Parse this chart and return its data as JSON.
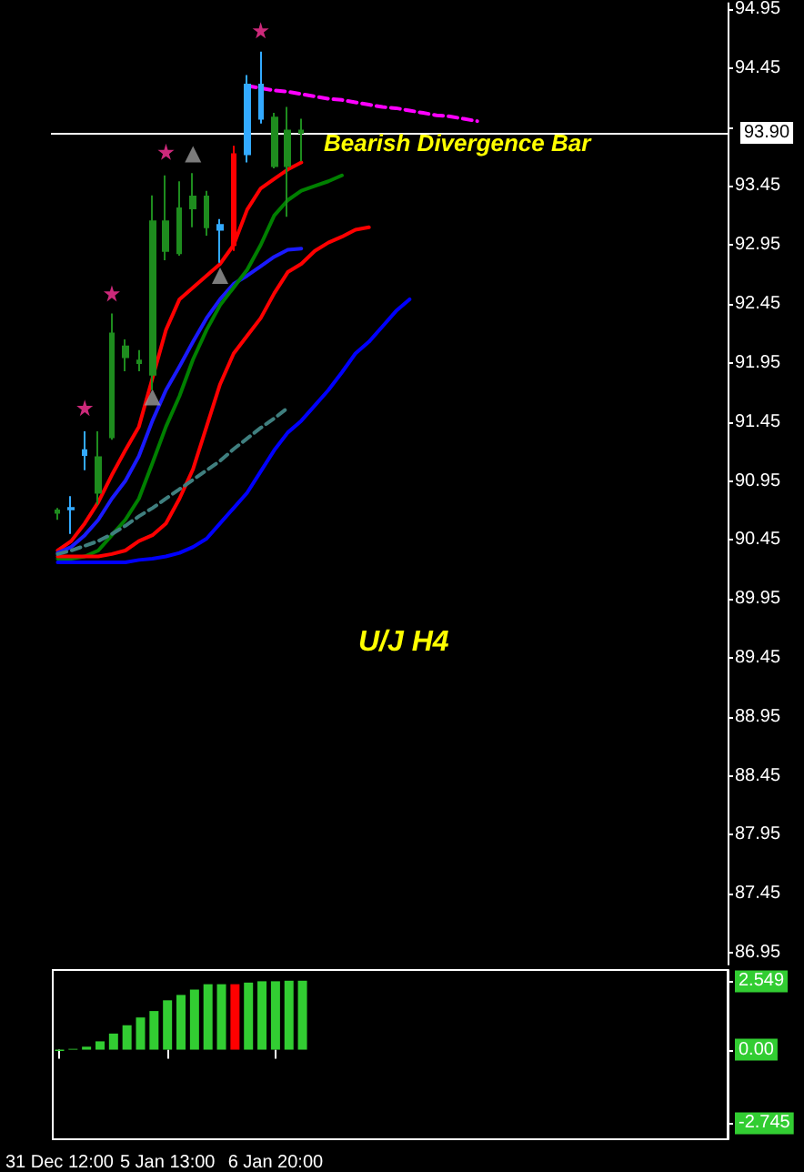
{
  "chart_data": [
    {
      "type": "candlestick",
      "title": "U/J H4",
      "annotations": [
        "Bearish Divergence Bar"
      ],
      "categories": [
        null,
        null,
        null,
        null,
        null,
        null,
        null,
        null,
        null,
        null,
        null,
        null,
        null,
        null,
        null,
        null,
        null,
        null,
        null,
        null,
        null,
        null,
        null,
        null,
        null,
        null,
        null,
        null,
        null,
        null,
        null,
        null,
        null,
        null,
        null,
        null,
        null,
        null,
        null,
        null,
        null,
        null,
        null,
        null,
        null,
        null,
        null,
        null,
        null,
        null
      ],
      "ohlc": [
        [
          90.7,
          90.72,
          90.62,
          90.68
        ],
        [
          90.71,
          90.82,
          90.5,
          90.72
        ],
        [
          91.17,
          91.37,
          91.04,
          91.21
        ],
        [
          91.15,
          91.37,
          90.75,
          90.85
        ],
        [
          92.2,
          92.37,
          91.3,
          91.32
        ],
        [
          92.09,
          92.15,
          91.88,
          92.0
        ],
        [
          91.97,
          92.06,
          91.88,
          91.95
        ],
        [
          93.15,
          93.37,
          91.72,
          91.85
        ],
        [
          93.15,
          93.54,
          92.82,
          92.9
        ],
        [
          93.26,
          93.49,
          92.86,
          92.88
        ],
        [
          93.36,
          93.56,
          93.1,
          93.26
        ],
        [
          93.36,
          93.41,
          93.03,
          93.1
        ],
        [
          93.08,
          93.17,
          92.8,
          93.12
        ],
        [
          92.95,
          93.79,
          92.9,
          93.72
        ],
        [
          93.72,
          94.39,
          93.65,
          94.31
        ],
        [
          94.02,
          94.59,
          93.98,
          94.31
        ],
        [
          94.03,
          94.07,
          93.6,
          93.62
        ],
        [
          93.92,
          94.12,
          93.19,
          93.62
        ],
        [
          93.92,
          94.02,
          93.66,
          93.9
        ],
        null,
        null,
        null,
        null,
        null,
        null,
        null,
        null,
        null,
        null,
        null,
        null,
        null,
        null,
        null,
        null,
        null,
        null,
        null,
        null,
        null,
        null,
        null,
        null,
        null,
        null,
        null,
        null,
        null,
        null,
        null
      ],
      "colors": [
        "#1e8c1e",
        "#33aaff",
        "#33aaff",
        "#1e8c1e",
        "#1e8c1e",
        "#1e8c1e",
        "#1e8c1e",
        "#1e8c1e",
        "#1e8c1e",
        "#1e8c1e",
        "#1e8c1e",
        "#1e8c1e",
        "#33aaff",
        "#ff0000",
        "#33aaff",
        "#33aaff",
        "#1e8c1e",
        "#1e8c1e",
        "#1e8c1e",
        null,
        null,
        null,
        null,
        null,
        null,
        null,
        null,
        null,
        null,
        null,
        null,
        null,
        null,
        null,
        null,
        null,
        null,
        null,
        null,
        null,
        null,
        null,
        null,
        null,
        null,
        null,
        null,
        null,
        null,
        null
      ],
      "series": [
        {
          "type": "line",
          "color": "#ff0000",
          "values": [
            90.36,
            90.44,
            90.59,
            90.77,
            91.0,
            91.21,
            91.41,
            91.82,
            92.23,
            92.49,
            92.59,
            92.69,
            92.79,
            92.95,
            93.25,
            93.43,
            93.51,
            93.59,
            93.65,
            null,
            null,
            null,
            null,
            null,
            null,
            null,
            null,
            null,
            null,
            null,
            null,
            null,
            null,
            null,
            null,
            null,
            null,
            null,
            null,
            null,
            null,
            null,
            null,
            null,
            null,
            null,
            null,
            null,
            null,
            null
          ]
        },
        {
          "type": "line",
          "color": "#1a1aff",
          "values": [
            90.34,
            90.39,
            90.49,
            90.62,
            90.8,
            90.95,
            91.16,
            91.46,
            91.72,
            91.92,
            92.13,
            92.33,
            92.49,
            92.62,
            92.69,
            92.77,
            92.85,
            92.91,
            92.92,
            null,
            null,
            null,
            null,
            null,
            null,
            null,
            null,
            null,
            null,
            null,
            null,
            null,
            null,
            null,
            null,
            null,
            null,
            null,
            null,
            null,
            null,
            null,
            null,
            null,
            null,
            null,
            null,
            null,
            null,
            null
          ]
        },
        {
          "type": "line",
          "color": "#008000",
          "values": [
            90.29,
            90.29,
            90.31,
            90.36,
            90.49,
            90.62,
            90.8,
            91.1,
            91.41,
            91.67,
            91.98,
            92.23,
            92.44,
            92.59,
            92.74,
            92.95,
            93.2,
            93.33,
            93.41,
            93.45,
            93.49,
            93.54,
            null,
            null,
            null,
            null,
            null,
            null,
            null,
            null,
            null,
            null,
            null,
            null,
            null,
            null,
            null,
            null,
            null,
            null,
            null,
            null,
            null,
            null,
            null,
            null,
            null,
            null,
            null,
            null
          ]
        },
        {
          "type": "line",
          "color": "#ff0000",
          "values": [
            90.31,
            90.31,
            90.31,
            90.31,
            90.33,
            90.36,
            90.44,
            90.49,
            90.59,
            90.8,
            91.05,
            91.41,
            91.77,
            92.03,
            92.18,
            92.33,
            92.54,
            92.72,
            92.79,
            92.9,
            92.97,
            93.02,
            93.08,
            93.1,
            null,
            null,
            null,
            null,
            null,
            null,
            null,
            null,
            null,
            null,
            null,
            null,
            null,
            null,
            null,
            null,
            null,
            null,
            null,
            null,
            null,
            null,
            null,
            null,
            null,
            null
          ]
        },
        {
          "type": "line",
          "color": "#0000ff",
          "values": [
            90.26,
            90.26,
            90.26,
            90.26,
            90.26,
            90.26,
            90.28,
            90.29,
            90.31,
            90.34,
            90.39,
            90.46,
            90.59,
            90.72,
            90.85,
            91.03,
            91.21,
            91.36,
            91.46,
            91.59,
            91.72,
            91.87,
            92.03,
            92.13,
            92.26,
            92.39,
            92.49,
            null,
            null,
            null,
            null,
            null,
            null,
            null,
            null,
            null,
            null,
            null,
            null,
            null,
            null,
            null,
            null,
            null,
            null,
            null,
            null,
            null,
            null,
            null
          ]
        },
        {
          "type": "line",
          "color": "#3f7f7f",
          "line_style": "dashed",
          "values": [
            90.33,
            90.36,
            90.4,
            90.44,
            90.5,
            90.57,
            90.65,
            90.72,
            90.8,
            90.88,
            90.96,
            91.04,
            91.12,
            91.22,
            91.31,
            91.4,
            91.48,
            91.57,
            null,
            null,
            null,
            null,
            null,
            null,
            null,
            null,
            null,
            null,
            null,
            null,
            null,
            null,
            null,
            null,
            null,
            null,
            null,
            null,
            null,
            null,
            null,
            null,
            null,
            null,
            null,
            null,
            null,
            null,
            null,
            null
          ]
        },
        {
          "type": "line",
          "color": "#ff00ff",
          "line_style": "dashed",
          "values": [
            null,
            null,
            null,
            null,
            null,
            null,
            null,
            null,
            null,
            null,
            null,
            null,
            null,
            null,
            94.3,
            94.28,
            94.26,
            94.25,
            94.23,
            94.21,
            94.19,
            94.18,
            94.16,
            94.14,
            94.12,
            94.11,
            94.09,
            94.07,
            94.05,
            94.04,
            94.02,
            94.0,
            null,
            null,
            null,
            null,
            null,
            null,
            null,
            null,
            null,
            null,
            null,
            null,
            null,
            null,
            null,
            null,
            null,
            null
          ]
        },
        {
          "type": "scatter",
          "color": "#ff3399",
          "marker": "star",
          "values": [
            null,
            null,
            91.57,
            null,
            92.54,
            null,
            null,
            null,
            93.74,
            null,
            null,
            null,
            null,
            null,
            null,
            94.77,
            null,
            null,
            null,
            null,
            null,
            null,
            null,
            null,
            null,
            null,
            null,
            null,
            null,
            null,
            null,
            null,
            null,
            null,
            null,
            null,
            null,
            null,
            null,
            null,
            null,
            null,
            null,
            null,
            null,
            null,
            null,
            null,
            null,
            null
          ]
        },
        {
          "type": "scatter",
          "color": "#9a9a9a",
          "marker": "triangle",
          "values": [
            null,
            null,
            null,
            null,
            null,
            null,
            null,
            91.66,
            null,
            null,
            93.72,
            null,
            92.69,
            null,
            null,
            null,
            null,
            null,
            null,
            null,
            null,
            null,
            null,
            null,
            null,
            null,
            null,
            null,
            null,
            null,
            null,
            null,
            null,
            null,
            null,
            null,
            null,
            null,
            null,
            null,
            null,
            null,
            null,
            null,
            null,
            null,
            null,
            null,
            null,
            null
          ]
        }
      ],
      "ylim": [
        86.85,
        95.0
      ],
      "yticks": [
        94.95,
        94.45,
        {
          "value": 93.95,
          "label": null
        },
        93.45,
        92.95,
        92.45,
        91.95,
        91.45,
        90.95,
        90.45,
        89.95,
        89.45,
        88.95,
        88.45,
        87.95,
        87.45,
        86.95
      ],
      "ref_lines": [
        {
          "axis": "y",
          "value": 93.9,
          "label": "93.90",
          "color": "#ffffff"
        }
      ],
      "tick_labels": "y"
    },
    {
      "type": "bar",
      "categories": [
        "31 Dec 12:00",
        null,
        null,
        null,
        null,
        null,
        null,
        null,
        "5 Jan 13:00",
        null,
        null,
        null,
        null,
        null,
        null,
        null,
        "6 Jan 20:00",
        null,
        null,
        null,
        null,
        null,
        null,
        null,
        null,
        null,
        null,
        null,
        null,
        null,
        null,
        null,
        null,
        null,
        null,
        null,
        null,
        null,
        null,
        null,
        null,
        null,
        null,
        null,
        null,
        null,
        null,
        null,
        null,
        null
      ],
      "values": [
        -0.05,
        0.03,
        0.11,
        0.31,
        0.6,
        0.91,
        1.2,
        1.44,
        1.84,
        2.04,
        2.24,
        2.44,
        2.44,
        2.44,
        2.5,
        2.55,
        2.55,
        2.57,
        2.57,
        null,
        null,
        null,
        null,
        null,
        null,
        null,
        null,
        null,
        null,
        null,
        null,
        null,
        null,
        null,
        null,
        null,
        null,
        null,
        null,
        null,
        null,
        null,
        null,
        null,
        null,
        null,
        null,
        null,
        null,
        null
      ],
      "colors": [
        "#32cd32",
        "#32cd32",
        "#32cd32",
        "#32cd32",
        "#32cd32",
        "#32cd32",
        "#32cd32",
        "#32cd32",
        "#32cd32",
        "#32cd32",
        "#32cd32",
        "#32cd32",
        "#32cd32",
        "#ff0000",
        "#32cd32",
        "#32cd32",
        "#32cd32",
        "#32cd32",
        "#32cd32",
        null,
        null,
        null,
        null,
        null,
        null,
        null,
        null,
        null,
        null,
        null,
        null,
        null,
        null,
        null,
        null,
        null,
        null,
        null,
        null,
        null,
        null,
        null,
        null,
        null,
        null,
        null,
        null,
        null,
        null,
        null
      ],
      "ylim": [
        -3.34,
        2.97
      ],
      "yticks": [
        2.549,
        {
          "value": 0,
          "label": "0.00"
        },
        -2.745
      ]
    }
  ]
}
